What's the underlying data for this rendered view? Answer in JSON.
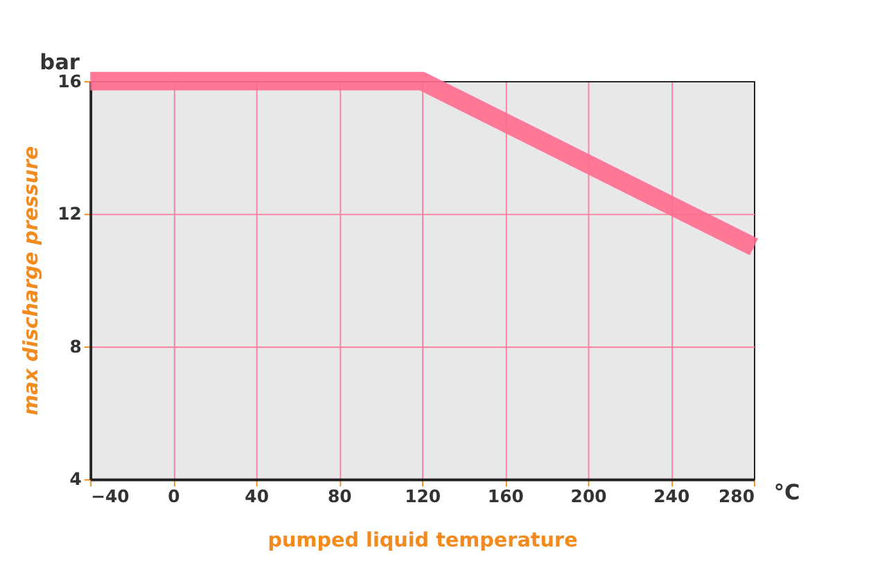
{
  "chart_data": {
    "type": "line",
    "xlabel": "pumped liquid temperature",
    "ylabel": "max discharge pressure",
    "x": [
      -40,
      120,
      280
    ],
    "series": [
      {
        "color": "#ff6b8e",
        "values": [
          16,
          16,
          11
        ]
      }
    ],
    "xlim": [
      -40,
      280
    ],
    "xticks": [
      -40,
      0,
      40,
      80,
      120,
      160,
      200,
      240,
      280
    ],
    "ylim": [
      4,
      16
    ],
    "yticks": [
      4,
      8,
      12,
      16
    ],
    "grid": true,
    "annotations": [
      "bar",
      "°C"
    ]
  }
}
